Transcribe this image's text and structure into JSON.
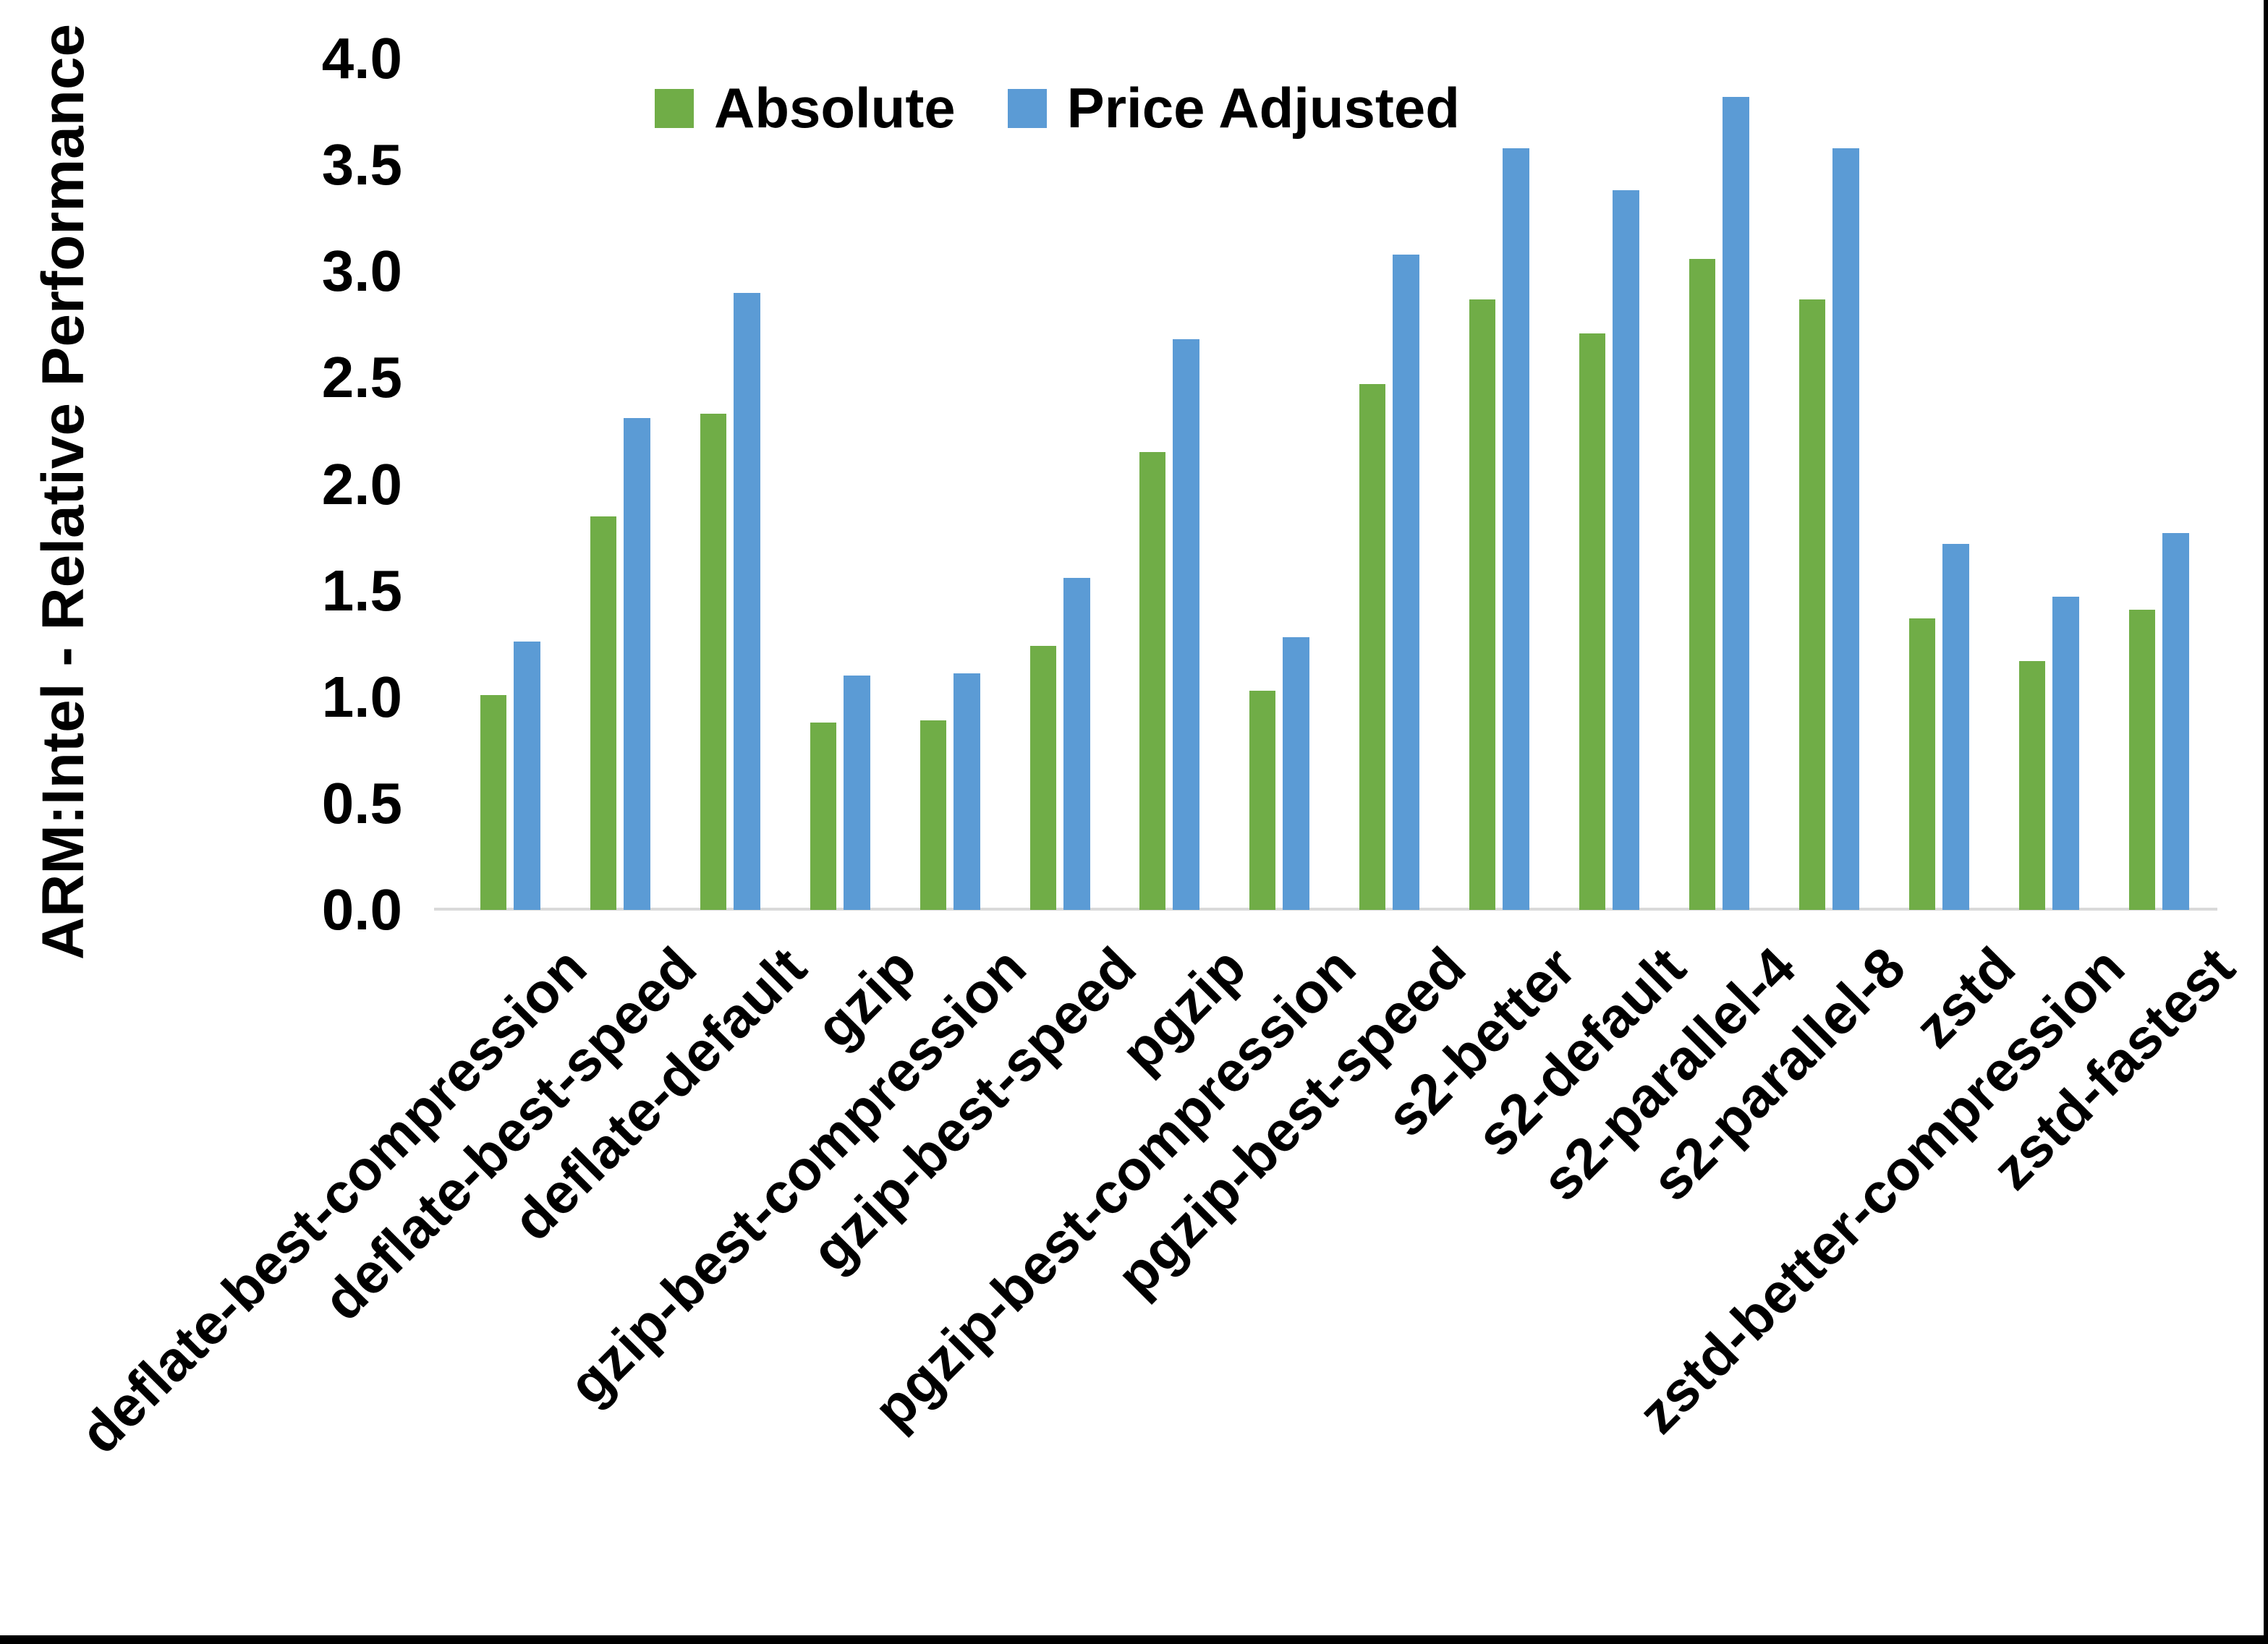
{
  "chart_data": {
    "type": "bar",
    "title": "",
    "xlabel": "",
    "ylabel": "ARM:Intel - Relative Performance",
    "ylim": [
      0.0,
      4.0
    ],
    "ytick_labels": [
      "0.0",
      "0.5",
      "1.0",
      "1.5",
      "2.0",
      "2.5",
      "3.0",
      "3.5",
      "4.0"
    ],
    "grid": false,
    "legend_position": "top-center-inside",
    "categories": [
      "deflate-best-compression",
      "deflate-best-speed",
      "deflate-default",
      "gzip",
      "gzip-best-compression",
      "gzip-best-speed",
      "pgzip",
      "pgzip-best-compression",
      "pgzip-best-speed",
      "s2-better",
      "s2-default",
      "s2-parallel-4",
      "s2-parallel-8",
      "zstd",
      "zstd-better-compression",
      "zstd-fastest"
    ],
    "series": [
      {
        "name": "Absolute",
        "color": "#70AD47",
        "values": [
          1.01,
          1.85,
          2.33,
          0.88,
          0.89,
          1.24,
          2.15,
          1.03,
          2.47,
          2.87,
          2.71,
          3.06,
          2.87,
          1.37,
          1.17,
          1.41
        ]
      },
      {
        "name": "Price Adjusted",
        "color": "#5B9BD5",
        "values": [
          1.26,
          2.31,
          2.9,
          1.1,
          1.11,
          1.56,
          2.68,
          1.28,
          3.08,
          3.58,
          3.38,
          3.82,
          3.58,
          1.72,
          1.47,
          1.77
        ]
      }
    ]
  },
  "colors": {
    "absolute_green": "#70AD47",
    "price_adjusted_blue": "#5B9BD5",
    "axis_line_gray": "#D9D9D9",
    "text_black": "#000000",
    "background": "#FFFFFF"
  }
}
